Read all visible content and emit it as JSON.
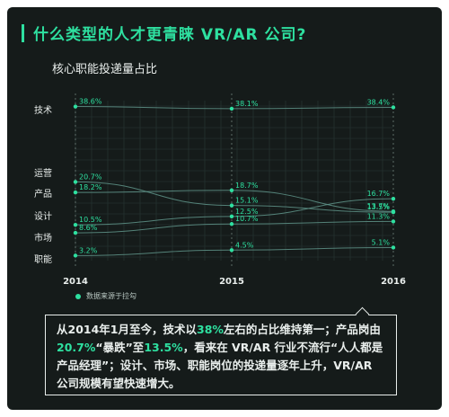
{
  "title": "什么类型的人才更青睐 VR/AR 公司?",
  "subtitle": "核心职能投递量占比",
  "source": "数据来源于拉勾",
  "colors": {
    "accent": "#2ee0a0",
    "background": "#151b1a"
  },
  "note": {
    "p1": "从2014年1月至今，技术以",
    "h1": "38%",
    "p2": "左右的占比维持第一；产品岗由",
    "h2": "20.7%",
    "p3": "“暴跌”至",
    "h3": "13.5%",
    "p4": "，看来在 VR/AR 行业不流行“人人都是产品经理”；设计、市场、职能岗位的投递量逐年上升，VR/AR 公司规模有望快速增大。"
  },
  "chart_data": {
    "type": "line",
    "x": [
      "2014",
      "2015",
      "2016"
    ],
    "categories": [
      "技术",
      "运营",
      "产品",
      "设计",
      "市场",
      "职能"
    ],
    "series": [
      {
        "name": "技术",
        "values": [
          38.6,
          38.1,
          38.4
        ],
        "labels": [
          "38.6%",
          "38.1%",
          "38.4%"
        ]
      },
      {
        "name": "产品",
        "values": [
          20.7,
          15.1,
          13.5
        ],
        "labels": [
          "20.7%",
          "15.1%",
          "13.5%"
        ]
      },
      {
        "name": "运营",
        "values": [
          18.2,
          18.7,
          13.7
        ],
        "labels": [
          "18.2%",
          "18.7%",
          "13.7%"
        ]
      },
      {
        "name": "设计",
        "values": [
          10.5,
          12.5,
          16.7
        ],
        "labels": [
          "10.5%",
          "12.5%",
          "16.7%"
        ]
      },
      {
        "name": "市场",
        "values": [
          8.6,
          10.7,
          11.3
        ],
        "labels": [
          "8.6%",
          "10.7%",
          "11.3%"
        ]
      },
      {
        "name": "职能",
        "values": [
          3.2,
          4.5,
          5.1
        ],
        "labels": [
          "3.2%",
          "4.5%",
          "5.1%"
        ]
      }
    ],
    "grid": true
  }
}
